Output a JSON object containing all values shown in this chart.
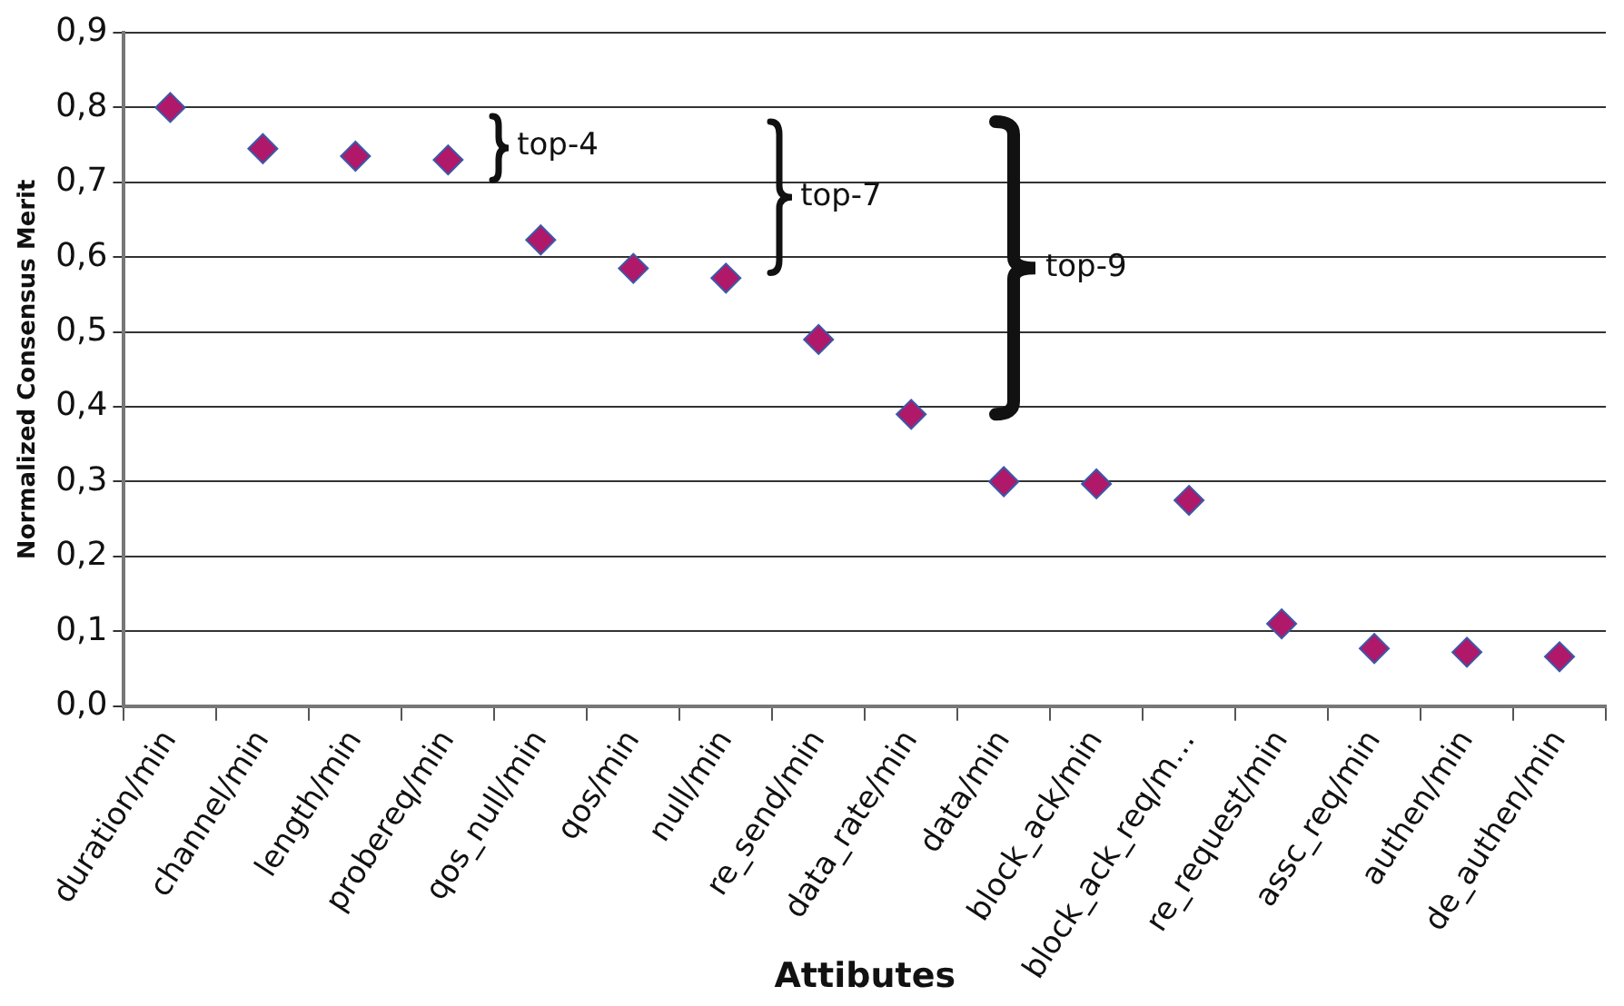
{
  "chart_data": {
    "type": "scatter",
    "xlabel": "Attibutes",
    "ylabel": "Normalized Consensus Merit",
    "categories": [
      "duration/min",
      "channel/min",
      "length/min",
      "probereq/min",
      "qos_null/min",
      "qos/min",
      "null/min",
      "re_send/min",
      "data_rate/min",
      "data/min",
      "block_ack/min",
      "block_ack_req/m…",
      "re_request/min",
      "assc_req/min",
      "authen/min",
      "de_authen/min"
    ],
    "values": [
      0.8,
      0.745,
      0.735,
      0.73,
      0.623,
      0.585,
      0.572,
      0.49,
      0.39,
      0.3,
      0.297,
      0.275,
      0.11,
      0.077,
      0.072,
      0.066
    ],
    "color": "#b0186a",
    "marker": "diamond",
    "ylim": [
      0,
      0.9
    ],
    "yticks": [
      {
        "value": 0,
        "label": "0,0"
      },
      {
        "value": 0.1,
        "label": "0,1"
      },
      {
        "value": 0.2,
        "label": "0,2"
      },
      {
        "value": 0.3,
        "label": "0,3"
      },
      {
        "value": 0.4,
        "label": "0,4"
      },
      {
        "value": 0.5,
        "label": "0,5"
      },
      {
        "value": 0.6,
        "label": "0,6"
      },
      {
        "value": 0.7,
        "label": "0,7"
      },
      {
        "value": 0.8,
        "label": "0,8"
      },
      {
        "value": 0.9,
        "label": "0,9"
      }
    ],
    "grid": "y",
    "annotations": [
      "top-4",
      "top-7",
      "top-9"
    ]
  }
}
